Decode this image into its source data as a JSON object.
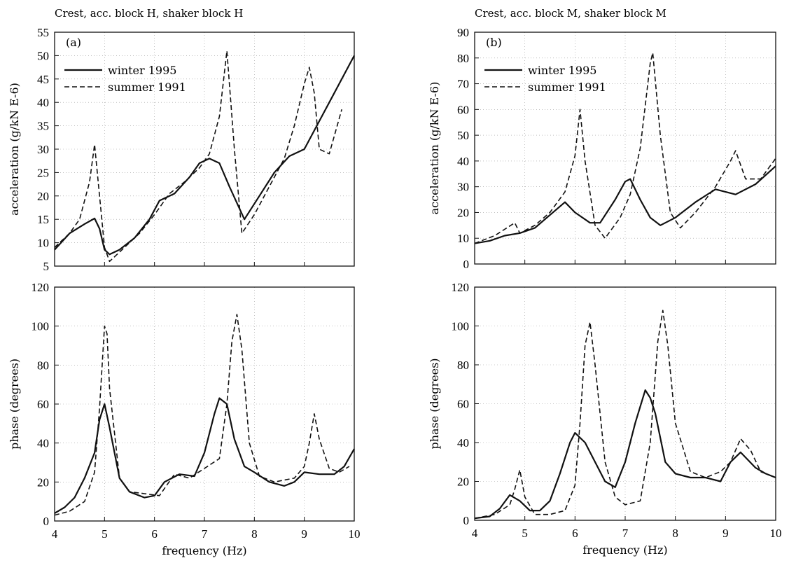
{
  "chart_data": [
    {
      "type": "line",
      "panel": "(a)",
      "title": "Crest, acc. block H, shaker block H",
      "xlabel": "",
      "ylabel": "acceleration (g/kN E-6)",
      "xlim": [
        4,
        10
      ],
      "ylim": [
        5,
        55
      ],
      "xticks": [],
      "yticks": [
        "5",
        "10",
        "15",
        "20",
        "25",
        "30",
        "35",
        "40",
        "45",
        "50",
        "55"
      ],
      "grid": true,
      "legend": "top-left",
      "series": [
        {
          "name": "winter 1995",
          "dash": "solid",
          "x": [
            4.0,
            4.3,
            4.6,
            4.8,
            4.9,
            5.0,
            5.1,
            5.3,
            5.6,
            5.9,
            6.1,
            6.4,
            6.7,
            6.9,
            7.1,
            7.3,
            7.5,
            7.8,
            8.1,
            8.4,
            8.7,
            9.0,
            9.3,
            9.6,
            10.0
          ],
          "y": [
            8.5,
            12,
            14,
            15.2,
            13,
            8.5,
            7.5,
            8.5,
            11,
            15,
            19,
            20.5,
            24,
            27,
            28,
            27,
            22,
            15,
            20,
            25,
            28.5,
            30,
            36,
            42,
            50
          ]
        },
        {
          "name": "summer 1991",
          "dash": "dashed",
          "x": [
            4.0,
            4.3,
            4.5,
            4.7,
            4.8,
            4.9,
            5.0,
            5.1,
            5.4,
            5.7,
            6.0,
            6.3,
            6.6,
            6.9,
            7.1,
            7.3,
            7.45,
            7.6,
            7.75,
            8.0,
            8.3,
            8.6,
            8.8,
            9.0,
            9.1,
            9.2,
            9.3,
            9.5,
            9.75
          ],
          "y": [
            9,
            12,
            15,
            23,
            31,
            20,
            9,
            6,
            9,
            12,
            16,
            20.5,
            23,
            26,
            29,
            37,
            51,
            30,
            12,
            16,
            22,
            28,
            35,
            44,
            47.5,
            42,
            30,
            29,
            38.5
          ]
        }
      ]
    },
    {
      "type": "line",
      "panel": "",
      "title": "",
      "xlabel": "frequency (Hz)",
      "ylabel": "phase (degrees)",
      "xlim": [
        4,
        10
      ],
      "ylim": [
        0,
        120
      ],
      "xticks": [
        "4",
        "5",
        "6",
        "7",
        "8",
        "9",
        "10"
      ],
      "yticks": [
        "0",
        "20",
        "40",
        "60",
        "80",
        "100",
        "120"
      ],
      "grid": true,
      "series": [
        {
          "name": "winter 1995",
          "dash": "solid",
          "x": [
            4.0,
            4.2,
            4.4,
            4.6,
            4.8,
            4.9,
            5.0,
            5.1,
            5.3,
            5.5,
            5.8,
            6.0,
            6.2,
            6.5,
            6.8,
            7.0,
            7.2,
            7.3,
            7.45,
            7.6,
            7.8,
            8.0,
            8.3,
            8.6,
            8.8,
            9.0,
            9.3,
            9.6,
            9.8,
            10.0
          ],
          "y": [
            4,
            7,
            12,
            22,
            35,
            52,
            60,
            48,
            22,
            15,
            12,
            13,
            20,
            24,
            23,
            35,
            55,
            63,
            60,
            42,
            28,
            25,
            20,
            18,
            20,
            25,
            24,
            24,
            28,
            37
          ]
        },
        {
          "name": "summer 1991",
          "dash": "dashed",
          "x": [
            4.0,
            4.3,
            4.6,
            4.8,
            4.9,
            5.0,
            5.05,
            5.1,
            5.3,
            5.5,
            5.8,
            6.1,
            6.4,
            6.7,
            7.0,
            7.3,
            7.45,
            7.55,
            7.65,
            7.75,
            7.9,
            8.1,
            8.4,
            8.8,
            9.0,
            9.1,
            9.2,
            9.3,
            9.5,
            9.7,
            9.9
          ],
          "y": [
            3,
            5,
            10,
            25,
            58,
            100,
            96,
            68,
            22,
            15,
            14,
            13,
            24,
            22,
            27,
            32,
            60,
            92,
            106,
            88,
            40,
            23,
            20,
            22,
            28,
            40,
            55,
            42,
            27,
            25,
            28
          ]
        }
      ]
    },
    {
      "type": "line",
      "panel": "(b)",
      "title": "Crest, acc. block M, shaker block M",
      "xlabel": "",
      "ylabel": "acceleration (g/kN E-6)",
      "xlim": [
        4,
        10
      ],
      "ylim": [
        0,
        90
      ],
      "xticks": [],
      "yticks": [
        "0",
        "10",
        "20",
        "30",
        "40",
        "50",
        "60",
        "70",
        "80",
        "90"
      ],
      "grid": true,
      "legend": "top-left",
      "series": [
        {
          "name": "winter 1995",
          "dash": "solid",
          "x": [
            4.0,
            4.3,
            4.6,
            4.9,
            5.2,
            5.5,
            5.8,
            6.0,
            6.3,
            6.5,
            6.8,
            7.0,
            7.1,
            7.3,
            7.5,
            7.7,
            8.0,
            8.4,
            8.8,
            9.2,
            9.6,
            10.0
          ],
          "y": [
            8,
            9,
            11,
            12,
            14,
            19,
            24,
            20,
            16,
            16,
            25,
            32,
            33,
            25,
            18,
            15,
            18,
            24,
            29,
            27,
            31,
            38
          ]
        },
        {
          "name": "summer 1991",
          "dash": "dashed",
          "x": [
            4.0,
            4.4,
            4.8,
            4.9,
            5.2,
            5.5,
            5.8,
            6.0,
            6.1,
            6.2,
            6.4,
            6.6,
            6.9,
            7.1,
            7.3,
            7.5,
            7.55,
            7.7,
            7.9,
            8.1,
            8.4,
            8.8,
            9.1,
            9.2,
            9.4,
            9.7,
            10.0
          ],
          "y": [
            8,
            11,
            16,
            12,
            15,
            20,
            28,
            42,
            60,
            40,
            15,
            10,
            18,
            27,
            45,
            78,
            82,
            50,
            20,
            14,
            20,
            30,
            40,
            44,
            33,
            33,
            41
          ]
        }
      ]
    },
    {
      "type": "line",
      "panel": "",
      "title": "",
      "xlabel": "frequency (Hz)",
      "ylabel": "phase (degrees)",
      "xlim": [
        4,
        10
      ],
      "ylim": [
        0,
        120
      ],
      "xticks": [
        "4",
        "5",
        "6",
        "7",
        "8",
        "9",
        "10"
      ],
      "yticks": [
        "0",
        "20",
        "40",
        "60",
        "80",
        "100",
        "120"
      ],
      "grid": true,
      "series": [
        {
          "name": "winter 1995",
          "dash": "solid",
          "x": [
            4.0,
            4.3,
            4.5,
            4.7,
            4.9,
            5.1,
            5.3,
            5.5,
            5.7,
            5.9,
            6.0,
            6.2,
            6.4,
            6.6,
            6.8,
            7.0,
            7.2,
            7.4,
            7.5,
            7.6,
            7.8,
            8.0,
            8.3,
            8.6,
            8.9,
            9.1,
            9.3,
            9.6,
            9.8,
            10.0
          ],
          "y": [
            1,
            2,
            6,
            13,
            10,
            5,
            5,
            10,
            24,
            40,
            45,
            40,
            30,
            20,
            17,
            30,
            50,
            67,
            63,
            55,
            30,
            24,
            22,
            22,
            20,
            30,
            35,
            27,
            24,
            22
          ]
        },
        {
          "name": "summer 1991",
          "dash": "dashed",
          "x": [
            4.0,
            4.4,
            4.7,
            4.8,
            4.9,
            5.0,
            5.2,
            5.5,
            5.8,
            6.0,
            6.1,
            6.2,
            6.3,
            6.4,
            6.6,
            6.8,
            7.0,
            7.3,
            7.5,
            7.65,
            7.75,
            7.85,
            8.0,
            8.3,
            8.6,
            8.9,
            9.1,
            9.3,
            9.5,
            9.7,
            10.0
          ],
          "y": [
            1,
            3,
            8,
            16,
            26,
            12,
            3,
            3,
            5,
            18,
            50,
            90,
            102,
            80,
            30,
            12,
            8,
            10,
            40,
            92,
            108,
            90,
            50,
            25,
            22,
            25,
            30,
            42,
            36,
            25,
            22
          ]
        }
      ]
    }
  ]
}
